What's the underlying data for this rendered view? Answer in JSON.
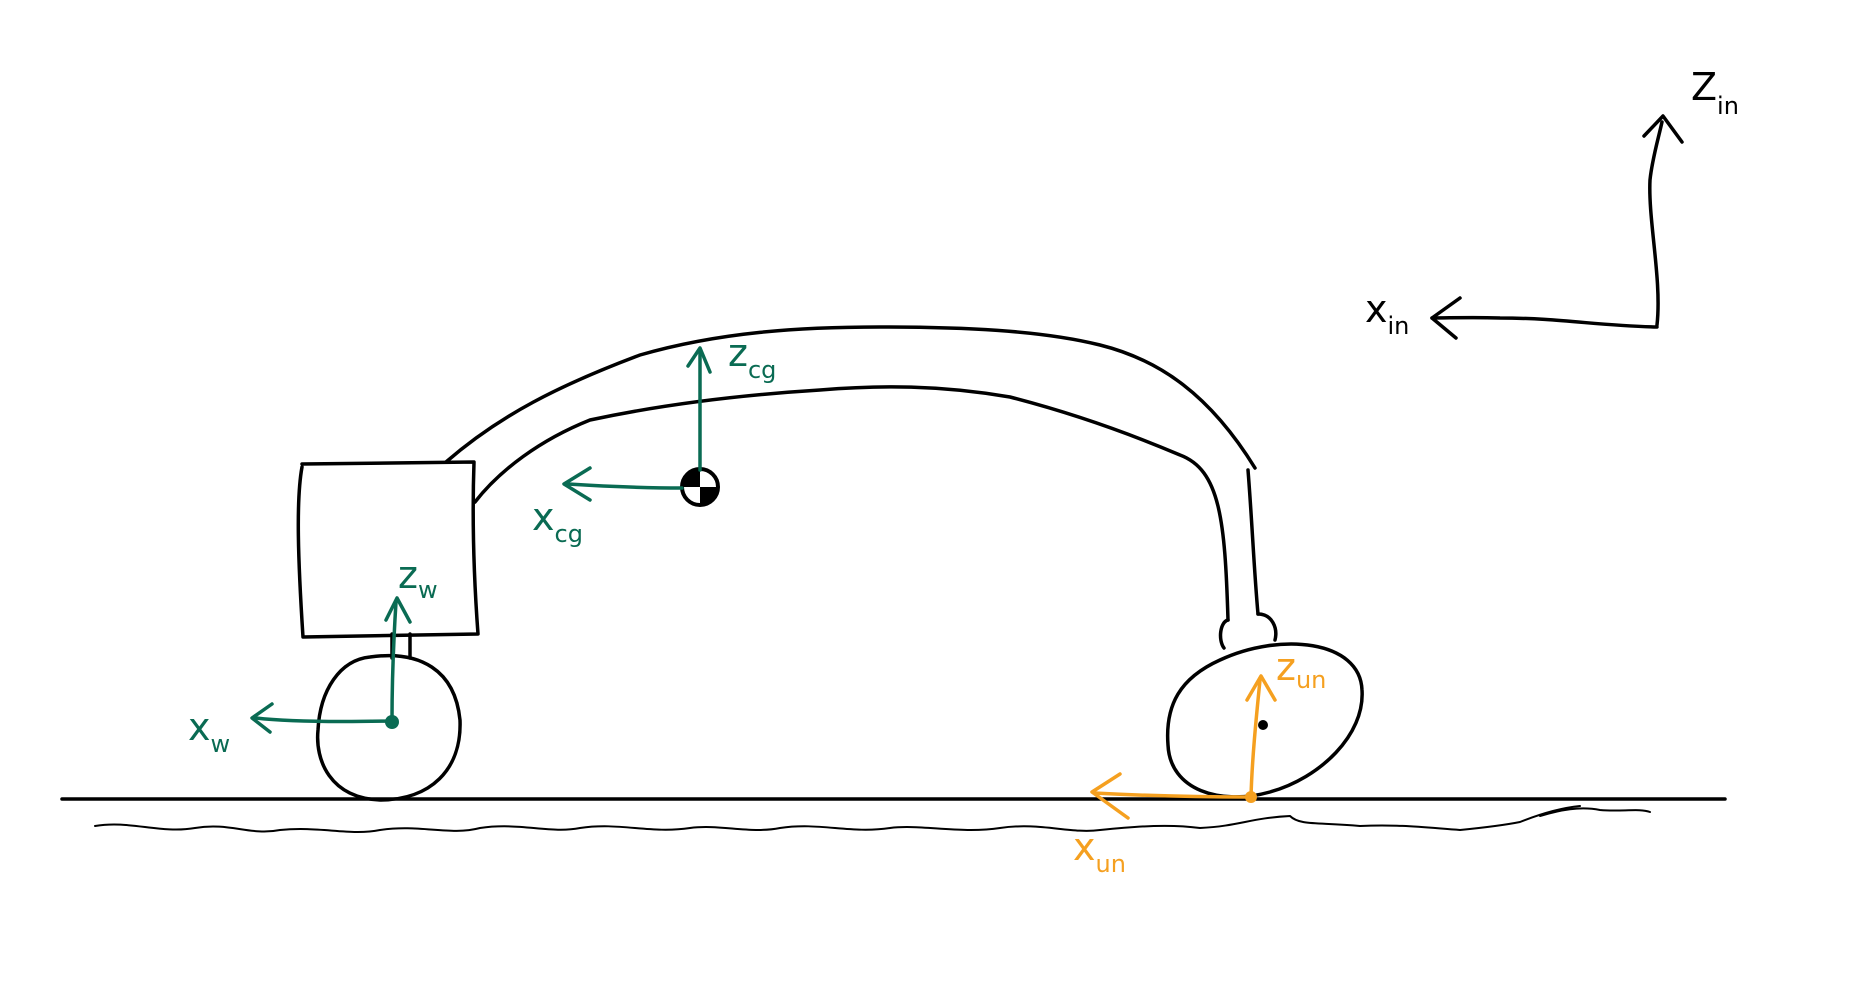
{
  "colors": {
    "ink": "#000000",
    "green": "#0a6b53",
    "orange": "#f5a020"
  },
  "frames": {
    "inertial": {
      "x_main": "x",
      "x_sub": "in",
      "z_main": "Z",
      "z_sub": "in"
    },
    "cg": {
      "x_main": "x",
      "x_sub": "cg",
      "z_main": "z",
      "z_sub": "cg"
    },
    "wheel": {
      "x_main": "x",
      "x_sub": "w",
      "z_main": "z",
      "z_sub": "w"
    },
    "contact": {
      "x_main": "x",
      "x_sub": "un",
      "z_main": "z",
      "z_sub": "un"
    }
  }
}
